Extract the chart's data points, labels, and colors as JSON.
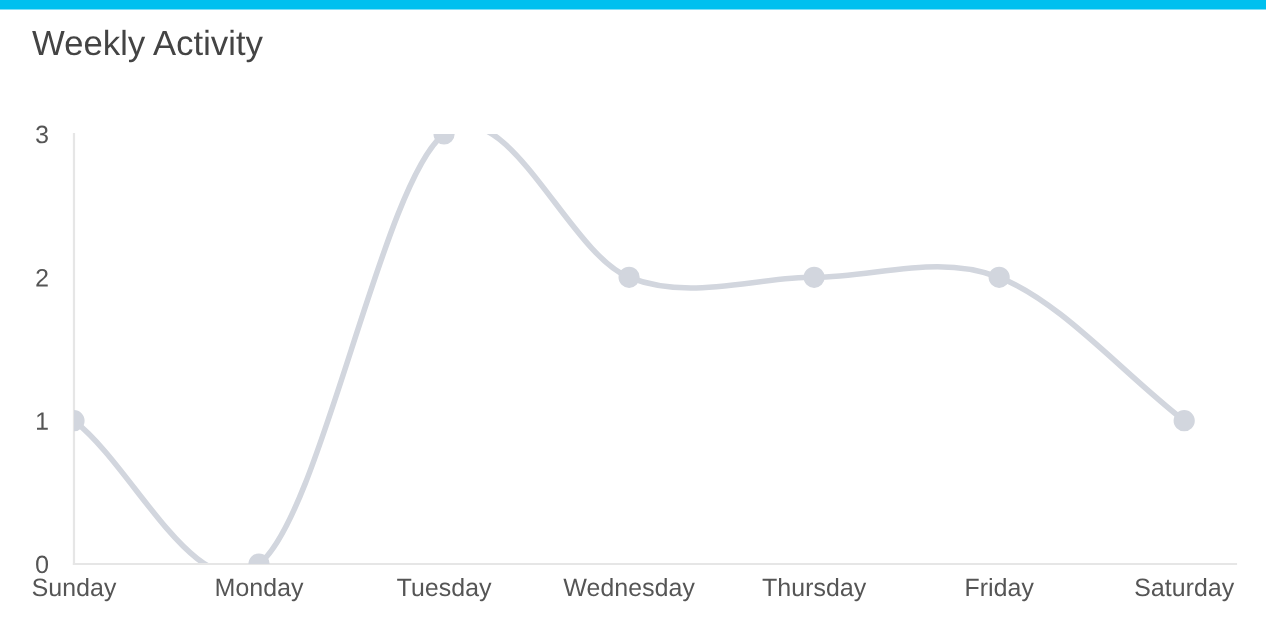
{
  "chart_data": {
    "type": "line",
    "title": "Weekly Activity",
    "categories": [
      "Sunday",
      "Monday",
      "Tuesday",
      "Wednesday",
      "Thursday",
      "Friday",
      "Saturday"
    ],
    "series": [
      {
        "color": "#d2d6de",
        "values": [
          1,
          0,
          3,
          2,
          2,
          2,
          1
        ]
      }
    ],
    "ylim": [
      0,
      3
    ],
    "yticks": [
      0,
      1,
      2,
      3
    ],
    "grid": false,
    "legend": false,
    "marker": "circle",
    "line_style": "solid"
  }
}
